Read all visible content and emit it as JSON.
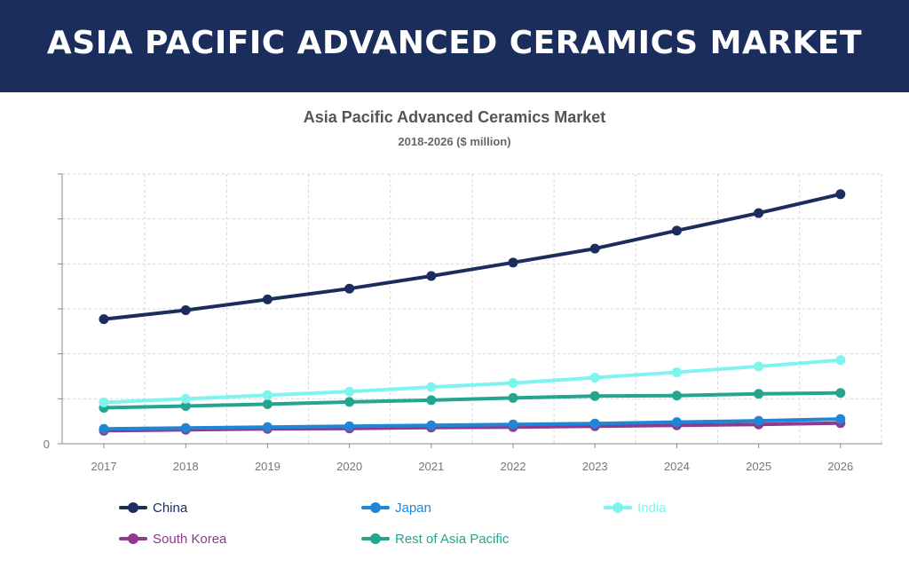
{
  "header": {
    "title": "ASIA PACIFIC ADVANCED CERAMICS MARKET"
  },
  "chart_data": {
    "type": "line",
    "title": "Asia Pacific Advanced Ceramics Market",
    "subtitle": "2018-2026 ($ million)",
    "xlabel": "",
    "ylabel": "",
    "categories": [
      "2017",
      "2018",
      "2019",
      "2020",
      "2021",
      "2022",
      "2023",
      "2024",
      "2025",
      "2026"
    ],
    "ytick_labels": [
      "0"
    ],
    "ylim": [
      0,
      600
    ],
    "grid": true,
    "legend_position": "bottom",
    "series": [
      {
        "name": "China",
        "color": "#1b2d5c",
        "values": [
          277,
          297,
          321,
          345,
          373,
          403,
          434,
          474,
          513,
          555
        ]
      },
      {
        "name": "Japan",
        "color": "#1f86d6",
        "values": [
          33,
          35,
          37,
          39,
          41,
          43,
          45,
          48,
          51,
          55
        ]
      },
      {
        "name": "India",
        "color": "#7ff4ef",
        "values": [
          92,
          100,
          108,
          116,
          126,
          135,
          147,
          159,
          172,
          186
        ]
      },
      {
        "name": "South Korea",
        "color": "#8e3a8e",
        "values": [
          29,
          31,
          33,
          34,
          36,
          37,
          39,
          41,
          43,
          46
        ]
      },
      {
        "name": "Rest of Asia Pacific",
        "color": "#23a590",
        "values": [
          80,
          84,
          88,
          93,
          97,
          102,
          106,
          107,
          111,
          113
        ]
      }
    ]
  }
}
